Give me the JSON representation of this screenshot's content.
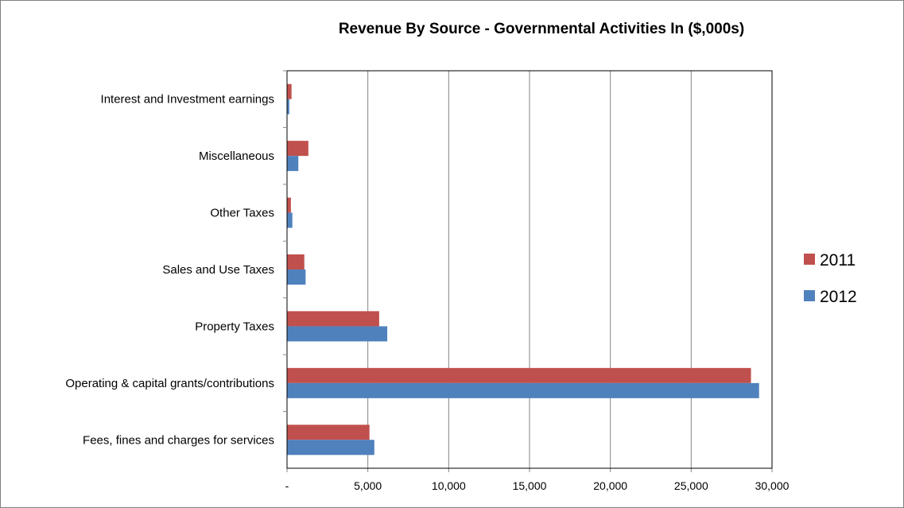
{
  "chart_data": {
    "type": "bar",
    "orientation": "horizontal",
    "title": "Revenue By Source - Governmental Activities In ($,000s)",
    "categories": [
      "Interest and Investment earnings",
      "Miscellaneous",
      "Other Taxes",
      "Sales and Use Taxes",
      "Property Taxes",
      "Operating & capital grants/contributions",
      "Fees, fines and charges for services"
    ],
    "series": [
      {
        "name": "2011",
        "color": "#C0504D",
        "values": [
          280,
          1320,
          240,
          1070,
          5700,
          28700,
          5100
        ]
      },
      {
        "name": "2012",
        "color": "#4F81BD",
        "values": [
          140,
          700,
          330,
          1150,
          6200,
          29200,
          5400
        ]
      }
    ],
    "xlim": [
      0,
      30000
    ],
    "ticks": [
      {
        "value": 0,
        "label": "-"
      },
      {
        "value": 5000,
        "label": "5,000"
      },
      {
        "value": 10000,
        "label": "10,000"
      },
      {
        "value": 15000,
        "label": "15,000"
      },
      {
        "value": 20000,
        "label": "20,000"
      },
      {
        "value": 25000,
        "label": "25,000"
      },
      {
        "value": 30000,
        "label": "30,000"
      }
    ],
    "grid": true,
    "legend": "right"
  }
}
